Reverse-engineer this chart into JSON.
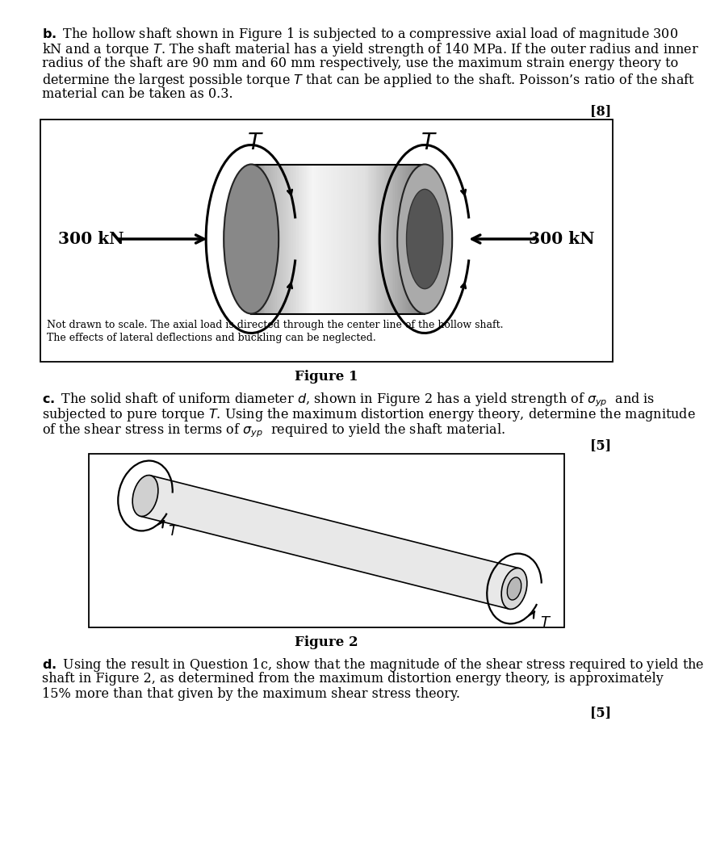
{
  "bg_color": "#ffffff",
  "figure1_note1": "Not drawn to scale. The axial load is directed through the center line of the hollow shaft.",
  "figure1_note2": "The effects of lateral deflections and buckling can be neglected.",
  "figure1_caption": "Figure 1",
  "figure2_caption": "Figure 2",
  "mark_b": "[8]",
  "mark_c": "[5]",
  "mark_d": "[5]",
  "part_b_line0": "$\\mathbf{b.}$ The hollow shaft shown in Figure 1 is subjected to a compressive axial load of magnitude 300",
  "part_b_line1": "kN and a torque $T$. The shaft material has a yield strength of 140 MPa. If the outer radius and inner",
  "part_b_line2": "radius of the shaft are 90 mm and 60 mm respectively, use the maximum strain energy theory to",
  "part_b_line3": "determine the largest possible torque $T$ that can be applied to the shaft. Poisson’s ratio of the shaft",
  "part_b_line4": "material can be taken as 0.3.",
  "part_c_line0": "$\\mathbf{c.}$ The solid shaft of uniform diameter $d$, shown in Figure 2 has a yield strength of $\\sigma_{yp}$  and is",
  "part_c_line1": "subjected to pure torque $T$. Using the maximum distortion energy theory, determine the magnitude",
  "part_c_line2": "of the shear stress in terms of $\\sigma_{yp}$  required to yield the shaft material.",
  "part_d_line0": "$\\mathbf{d.}$ Using the result in Question 1c, show that the magnitude of the shear stress required to yield the",
  "part_d_line1": "shaft in Figure 2, as determined from the maximum distortion energy theory, is approximately",
  "part_d_line2": "15% more than that given by the maximum shear stress theory.",
  "fs": 11.5,
  "lh": 19.0,
  "ml": 42,
  "mr": 42
}
